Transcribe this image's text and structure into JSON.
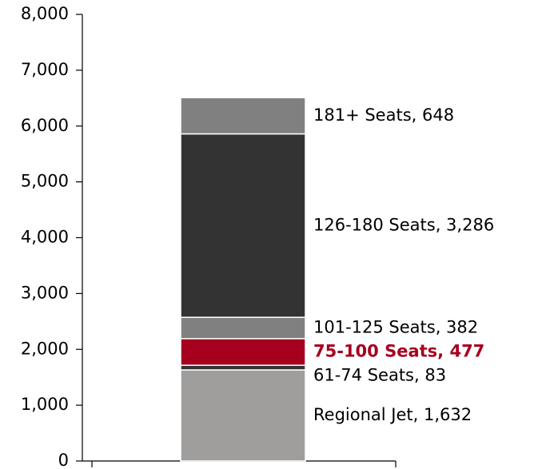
{
  "chart_data": {
    "type": "stacked_bar",
    "categories": [
      null
    ],
    "series": [
      {
        "color": "#a09e9c",
        "values": [
          1632
        ],
        "value_labels": [
          "Regional Jet, 1,632"
        ]
      },
      {
        "color": "#333333",
        "values": [
          83
        ],
        "value_labels": [
          "61-74 Seats, 83"
        ]
      },
      {
        "color": "#a6001e",
        "values": [
          477
        ],
        "value_labels": [
          "75-100 Seats, 477"
        ],
        "label_color": "#a6001e",
        "label_bold": true
      },
      {
        "color": "#808080",
        "values": [
          382
        ],
        "value_labels": [
          "101-125 Seats, 382"
        ]
      },
      {
        "color": "#333333",
        "values": [
          3286
        ],
        "value_labels": [
          "126-180 Seats, 3,286"
        ]
      },
      {
        "color": "#808080",
        "values": [
          648
        ],
        "value_labels": [
          "181+ Seats, 648"
        ]
      }
    ],
    "ylim": [
      0,
      8000
    ],
    "yticks": [
      0,
      {
        "value": 1000,
        "label": "1,000"
      },
      {
        "value": 2000,
        "label": "2,000"
      },
      {
        "value": 3000,
        "label": "3,000"
      },
      {
        "value": 4000,
        "label": "4,000"
      },
      {
        "value": 5000,
        "label": "5,000"
      },
      {
        "value": 6000,
        "label": "6,000"
      },
      {
        "value": 7000,
        "label": "7,000"
      },
      {
        "value": 8000,
        "label": "8,000"
      }
    ]
  }
}
